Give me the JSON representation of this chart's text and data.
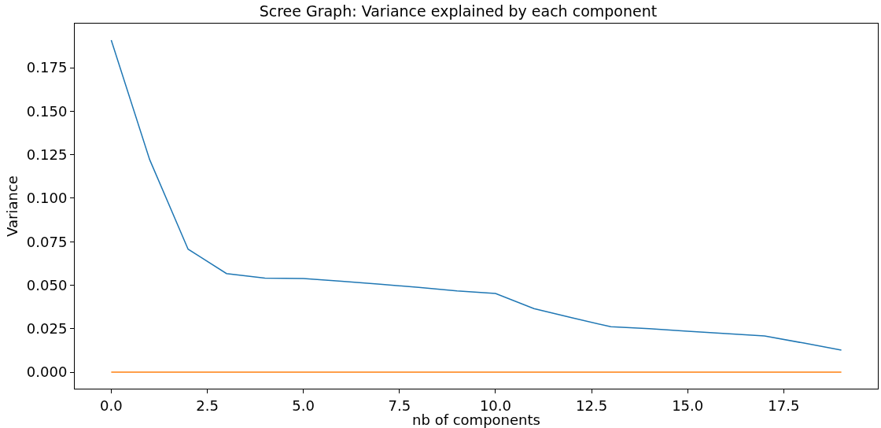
{
  "chart_data": {
    "type": "line",
    "title": "Scree Graph: Variance explained by each component",
    "xlabel": "nb of components",
    "ylabel": "Variance",
    "x": [
      0,
      1,
      2,
      3,
      4,
      5,
      6,
      7,
      8,
      9,
      10,
      11,
      12,
      13,
      14,
      15,
      16,
      17,
      18,
      19
    ],
    "series": [
      {
        "color": "#1f77b4",
        "values": [
          0.1909,
          0.1222,
          0.0707,
          0.0567,
          0.0541,
          0.0538,
          0.0522,
          0.0505,
          0.0487,
          0.0467,
          0.0452,
          0.0365,
          0.0312,
          0.0261,
          0.025,
          0.0235,
          0.0222,
          0.0208,
          0.0168,
          0.0127
        ]
      },
      {
        "color": "#ff7f0e",
        "values": [
          0,
          0,
          0,
          0,
          0,
          0,
          0,
          0,
          0,
          0,
          0,
          0,
          0,
          0,
          0,
          0,
          0,
          0,
          0,
          0
        ]
      }
    ],
    "xlim": [
      -0.95,
      19.95
    ],
    "ylim": [
      -0.0095,
      0.2004
    ],
    "xticks": [
      {
        "value": 0,
        "label": "0.0"
      },
      {
        "value": 2.5,
        "label": "2.5"
      },
      {
        "value": 5,
        "label": "5.0"
      },
      {
        "value": 7.5,
        "label": "7.5"
      },
      {
        "value": 10,
        "label": "10.0"
      },
      {
        "value": 12.5,
        "label": "12.5"
      },
      {
        "value": 15,
        "label": "15.0"
      },
      {
        "value": 17.5,
        "label": "17.5"
      }
    ],
    "yticks": [
      {
        "value": 0,
        "label": "0.000"
      },
      {
        "value": 0.025,
        "label": "0.025"
      },
      {
        "value": 0.05,
        "label": "0.050"
      },
      {
        "value": 0.075,
        "label": "0.075"
      },
      {
        "value": 0.1,
        "label": "0.100"
      },
      {
        "value": 0.125,
        "label": "0.125"
      },
      {
        "value": 0.15,
        "label": "0.150"
      },
      {
        "value": 0.175,
        "label": "0.175"
      }
    ],
    "grid": false,
    "marker": "none",
    "line_style": "solid"
  }
}
